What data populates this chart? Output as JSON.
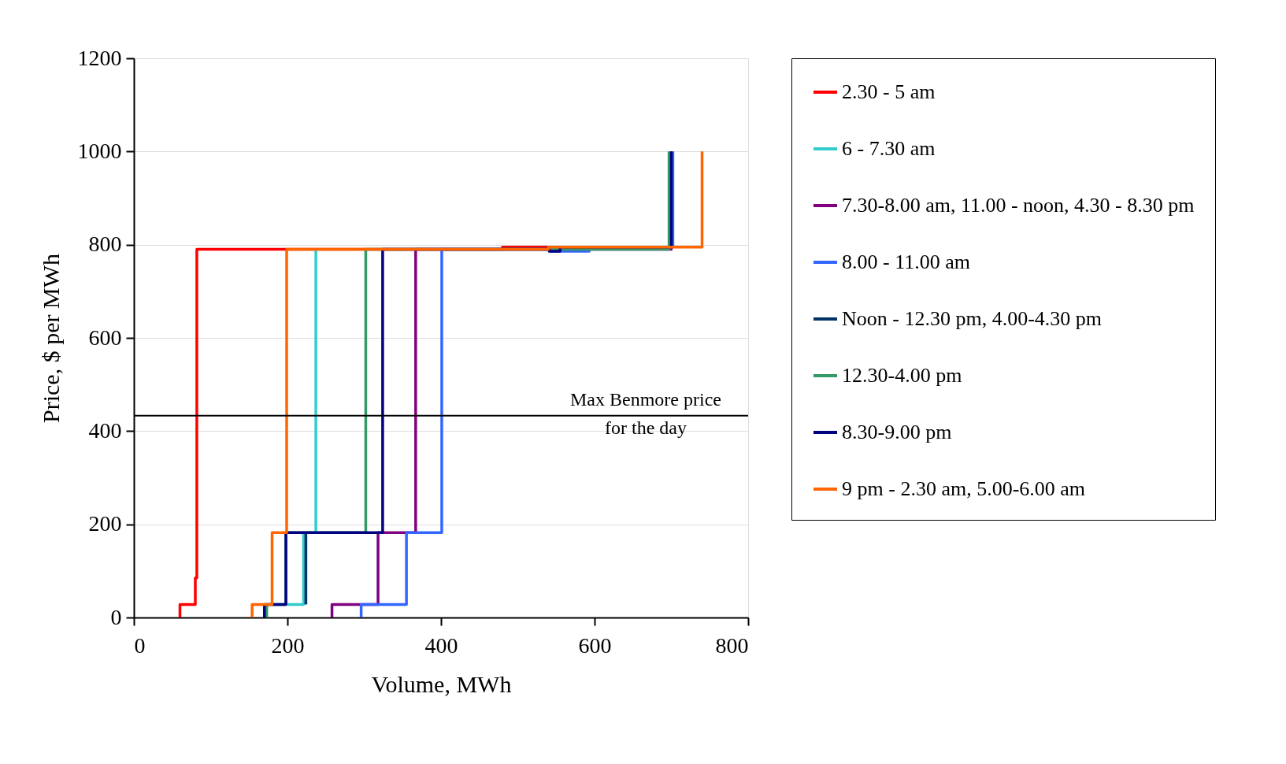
{
  "chart_data": {
    "type": "line",
    "xlabel": "Volume, MWh",
    "ylabel": "Price, $ per MWh",
    "xlim": [
      0,
      800
    ],
    "xticks": [
      0,
      200,
      400,
      600,
      800
    ],
    "ylim": [
      0,
      1200
    ],
    "yticks": [
      0,
      200,
      400,
      600,
      800,
      1000,
      1200
    ],
    "grid": "y",
    "legend": "right",
    "series": [
      {
        "name": "2.30 - 5 am",
        "color": "#ff0000",
        "x": [
          60,
          60,
          80,
          80,
          82,
          82,
          480,
          480,
          540
        ],
        "values": [
          0,
          28,
          28,
          85,
          85,
          790,
          790,
          795,
          795
        ]
      },
      {
        "name": "6 - 7.30 am",
        "color": "#33cccc",
        "x": [
          200,
          221,
          221,
          237,
          237
        ],
        "values": [
          28,
          28,
          182,
          182,
          790
        ]
      },
      {
        "name": "7.30-8.00 am, 11.00 - noon, 4.30 - 8.30 pm",
        "color": "#800080",
        "x": [
          258,
          258,
          318,
          318,
          367,
          367,
          700,
          700
        ],
        "values": [
          0,
          28,
          28,
          182,
          182,
          790,
          790,
          1000
        ]
      },
      {
        "name": "8.00 - 11.00 am",
        "color": "#3366ff",
        "x": [
          296,
          296,
          355,
          355,
          401,
          401,
          541,
          541,
          593,
          593,
          702,
          702
        ],
        "values": [
          0,
          28,
          28,
          182,
          182,
          790,
          790,
          786,
          786,
          795,
          795,
          1000
        ]
      },
      {
        "name": "Noon - 12.30 pm, 4.00-4.30 pm",
        "color": "#003366",
        "x": [
          224,
          224
        ],
        "values": [
          28,
          182
        ]
      },
      {
        "name": "12.30-4.00 pm",
        "color": "#339966",
        "x": [
          173,
          173,
          198,
          198,
          302,
          302,
          697,
          697
        ],
        "values": [
          0,
          28,
          28,
          182,
          182,
          790,
          790,
          1000
        ]
      },
      {
        "name": "8.30-9.00 pm",
        "color": "#000080",
        "x": [
          170,
          170,
          198,
          198,
          324,
          324,
          541,
          541,
          555,
          555,
          700,
          700
        ],
        "values": [
          0,
          28,
          28,
          182,
          182,
          790,
          790,
          786,
          786,
          795,
          795,
          1000
        ]
      },
      {
        "name": "9 pm - 2.30 am, 5.00-6.00 am",
        "color": "#ff6600",
        "x": [
          154,
          154,
          180,
          180,
          199,
          199,
          540,
          540,
          740,
          740
        ],
        "values": [
          0,
          28,
          28,
          182,
          182,
          790,
          790,
          795,
          795,
          1000
        ]
      }
    ],
    "ref_lines": [
      {
        "axis": "y",
        "value": 433,
        "label": "Max Benmore price\nfor the day",
        "color": "#000000"
      }
    ]
  }
}
